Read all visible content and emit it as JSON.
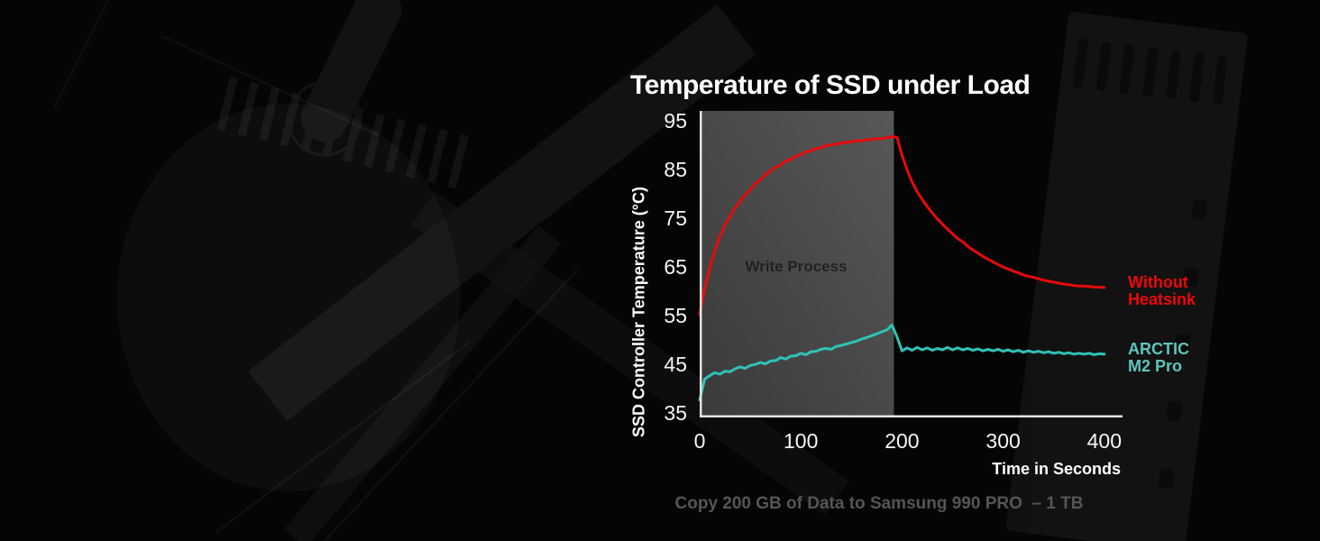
{
  "caption": "Copy 200 GB of Data to Samsung 990 PRO  – 1 TB",
  "colors": {
    "background": "#050505",
    "axis": "#e2e2e2",
    "tick_text": "#f5f5f5",
    "title_text": "#ffffff",
    "annotation_text": "#212121",
    "caption_text": "#555555",
    "without_heatsink_red": "#e80a0a",
    "arctic_teal": "#2fc2b7",
    "legend_red_text": "#ee0808",
    "legend_teal_text": "#5fc5bc"
  },
  "chart_data": {
    "type": "line",
    "title": "Temperature of SSD under Load",
    "xlabel": "Time in Seconds",
    "ylabel": "SSD Controller Temperature (°C)",
    "xlim": [
      0,
      418
    ],
    "ylim": [
      34,
      97
    ],
    "x_ticks": [
      0,
      100,
      200,
      300,
      400
    ],
    "y_ticks": [
      35,
      45,
      55,
      65,
      75,
      85,
      95
    ],
    "grid": false,
    "legend_position": "right-of-plot",
    "shaded_region": {
      "label": "Write Process",
      "x_from": 0,
      "x_to": 192,
      "color_from": "#3a3a3a",
      "color_to": "#585858"
    },
    "x_step_seconds": 5,
    "series": [
      {
        "name": "Without Heatsink",
        "name_lines": [
          "Without",
          "Heatsink"
        ],
        "color": "#e80a0a",
        "label_color": "#ee0808",
        "values": [
          55.2,
          60.6,
          64.8,
          68.3,
          71.2,
          73.6,
          75.4,
          77.1,
          78.4,
          79.8,
          80.8,
          82.1,
          82.8,
          84.0,
          84.6,
          85.5,
          85.9,
          86.7,
          87.0,
          87.7,
          88.0,
          88.6,
          88.8,
          89.3,
          89.4,
          89.9,
          90.0,
          90.3,
          90.3,
          90.6,
          90.6,
          90.9,
          90.8,
          91.1,
          91.1,
          91.3,
          91.3,
          91.5,
          91.7,
          91.6,
          87.9,
          84.9,
          82.4,
          80.4,
          78.8,
          77.3,
          76.0,
          74.8,
          73.7,
          72.7,
          71.7,
          70.8,
          70.1,
          69.2,
          68.4,
          67.8,
          67.1,
          66.5,
          66.0,
          65.4,
          64.9,
          64.5,
          64.1,
          63.7,
          63.3,
          63.0,
          62.8,
          62.5,
          62.2,
          62.0,
          61.8,
          61.6,
          61.4,
          61.3,
          61.1,
          61.0,
          61.0,
          60.9,
          60.8,
          60.8,
          60.7
        ]
      },
      {
        "name": "ARCTIC M2 Pro",
        "name_lines": [
          "ARCTIC",
          "M2 Pro"
        ],
        "color": "#2fc2b7",
        "label_color": "#5fc5bc",
        "values": [
          37.6,
          41.9,
          42.6,
          43.2,
          42.9,
          43.5,
          43.4,
          44.0,
          44.4,
          44.1,
          44.7,
          44.9,
          45.3,
          45.0,
          45.6,
          45.7,
          46.3,
          46.0,
          46.6,
          46.7,
          47.2,
          46.9,
          47.5,
          47.6,
          48.0,
          48.2,
          48.0,
          48.6,
          48.8,
          49.1,
          49.4,
          49.7,
          50.1,
          50.4,
          50.8,
          51.2,
          51.6,
          52.0,
          53.0,
          50.6,
          47.7,
          48.3,
          47.8,
          48.4,
          47.9,
          48.3,
          47.8,
          48.2,
          47.9,
          48.4,
          47.9,
          48.3,
          47.9,
          48.2,
          47.8,
          48.1,
          47.7,
          48.0,
          47.7,
          48.0,
          47.6,
          47.9,
          47.5,
          47.8,
          47.4,
          47.7,
          47.4,
          47.6,
          47.3,
          47.5,
          47.2,
          47.4,
          47.1,
          47.3,
          47.0,
          47.2,
          47.0,
          47.2,
          46.9,
          47.1,
          47.0
        ]
      }
    ]
  }
}
